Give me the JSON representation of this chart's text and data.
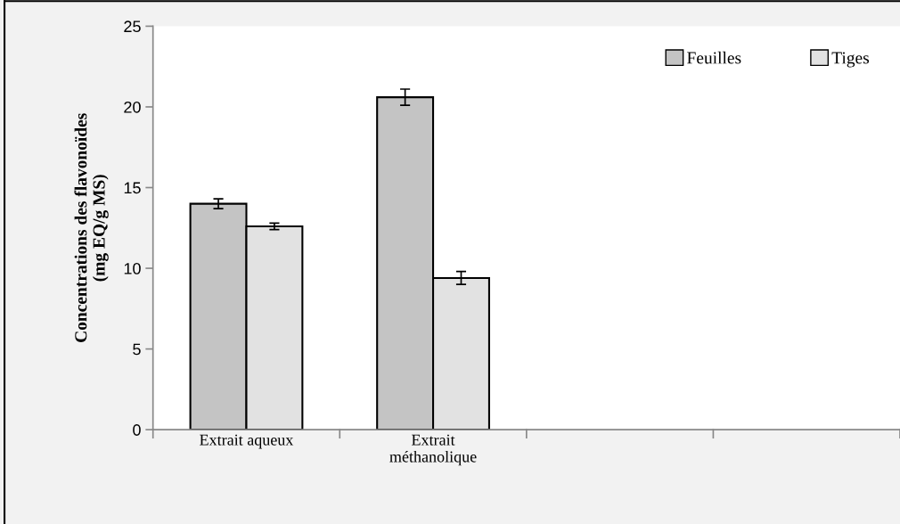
{
  "chart_data": {
    "type": "bar",
    "ylabel": "Concentrations des flavonoïdes\n(mg EQ/g MS)",
    "categories": [
      "Extrait aqueux",
      "Extrait\nméthanolique",
      null,
      null
    ],
    "series": [
      {
        "name": "Feuilles",
        "color": "#c4c4c4",
        "values": [
          14.0,
          20.6,
          null,
          null
        ],
        "errors": [
          0.3,
          0.5,
          null,
          null
        ]
      },
      {
        "name": "Tiges",
        "color": "#e2e2e2",
        "values": [
          12.6,
          9.4,
          null,
          null
        ],
        "errors": [
          0.2,
          0.4,
          null,
          null
        ]
      }
    ],
    "ylim": [
      0,
      25
    ],
    "yticks": [
      0,
      5,
      10,
      15,
      20,
      25
    ],
    "grid": false,
    "legend": "top right"
  }
}
